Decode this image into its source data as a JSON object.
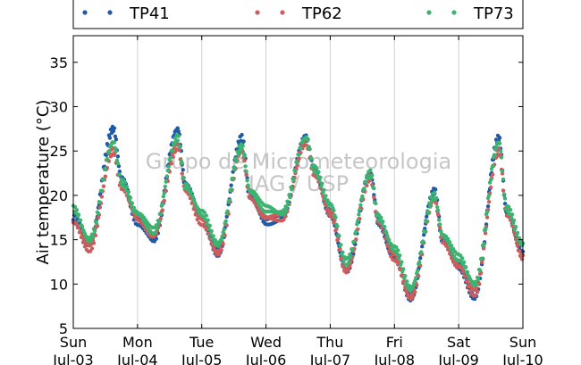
{
  "chart_data": {
    "type": "scatter",
    "ylabel": "Air temperature (°C)",
    "xlabel": "",
    "ylim": [
      5,
      38
    ],
    "xlim": [
      "2016-07-03T00:00",
      "2016-07-10T00:00"
    ],
    "yticks": [
      5,
      10,
      15,
      20,
      25,
      30,
      35
    ],
    "xticks": [
      {
        "day": "Sun",
        "date": "Jul-03"
      },
      {
        "day": "Mon",
        "date": "Jul-04"
      },
      {
        "day": "Tue",
        "date": "Jul-05"
      },
      {
        "day": "Wed",
        "date": "Jul-06"
      },
      {
        "day": "Thu",
        "date": "Jul-07"
      },
      {
        "day": "Fri",
        "date": "Jul-08"
      },
      {
        "day": "Sat",
        "date": "Jul-09"
      },
      {
        "day": "Sun",
        "date": "Jul-10"
      }
    ],
    "grid": "vertical",
    "legend_position": "top",
    "watermark": [
      "Grupo de Micrometeorologia",
      "IAG / USP"
    ],
    "series": [
      {
        "name": "TP41",
        "color": "#1f5aa6",
        "x": [
          "2016-07-03T00:00",
          "2016-07-03T06:00",
          "2016-07-03T15:00",
          "2016-07-03T18:00",
          "2016-07-04T00:00",
          "2016-07-04T06:00",
          "2016-07-04T15:00",
          "2016-07-04T18:00",
          "2016-07-05T00:00",
          "2016-07-05T06:00",
          "2016-07-05T15:00",
          "2016-07-05T18:00",
          "2016-07-06T00:00",
          "2016-07-06T06:00",
          "2016-07-06T15:00",
          "2016-07-06T18:00",
          "2016-07-07T00:00",
          "2016-07-07T06:00",
          "2016-07-07T15:00",
          "2016-07-07T18:00",
          "2016-07-08T00:00",
          "2016-07-08T06:00",
          "2016-07-08T15:00",
          "2016-07-08T18:00",
          "2016-07-09T00:00",
          "2016-07-09T06:00",
          "2016-07-09T15:00",
          "2016-07-09T18:00",
          "2016-07-10T00:00"
        ],
        "y": [
          17.5,
          14.5,
          27.5,
          22.0,
          17.0,
          15.0,
          27.5,
          21.0,
          17.5,
          13.5,
          26.5,
          20.0,
          17.0,
          17.5,
          26.5,
          23.0,
          18.0,
          11.5,
          22.5,
          17.0,
          13.0,
          8.5,
          20.5,
          15.0,
          12.0,
          8.5,
          26.5,
          18.0,
          14.0
        ]
      },
      {
        "name": "TP62",
        "color": "#cd5c5c",
        "x": [
          "2016-07-03T00:00",
          "2016-07-03T06:00",
          "2016-07-03T15:00",
          "2016-07-03T18:00",
          "2016-07-04T00:00",
          "2016-07-04T06:00",
          "2016-07-04T15:00",
          "2016-07-04T18:00",
          "2016-07-05T00:00",
          "2016-07-05T06:00",
          "2016-07-05T15:00",
          "2016-07-05T18:00",
          "2016-07-06T00:00",
          "2016-07-06T06:00",
          "2016-07-06T15:00",
          "2016-07-06T18:00",
          "2016-07-07T00:00",
          "2016-07-07T06:00",
          "2016-07-07T15:00",
          "2016-07-07T18:00",
          "2016-07-08T00:00",
          "2016-07-08T06:00",
          "2016-07-08T15:00",
          "2016-07-08T18:00",
          "2016-07-09T00:00",
          "2016-07-09T06:00",
          "2016-07-09T15:00",
          "2016-07-09T18:00",
          "2016-07-10T00:00"
        ],
        "y": [
          17.0,
          14.0,
          25.0,
          21.0,
          17.5,
          15.5,
          25.5,
          20.5,
          17.0,
          13.5,
          25.0,
          20.0,
          17.5,
          17.5,
          26.0,
          22.5,
          18.0,
          11.5,
          22.0,
          17.0,
          13.0,
          8.5,
          19.5,
          15.0,
          12.0,
          9.0,
          25.0,
          18.0,
          13.0
        ]
      },
      {
        "name": "TP73",
        "color": "#3cb371",
        "x": [
          "2016-07-03T00:00",
          "2016-07-03T06:00",
          "2016-07-03T15:00",
          "2016-07-03T18:00",
          "2016-07-04T00:00",
          "2016-07-04T06:00",
          "2016-07-04T15:00",
          "2016-07-04T18:00",
          "2016-07-05T00:00",
          "2016-07-05T06:00",
          "2016-07-05T15:00",
          "2016-07-05T18:00",
          "2016-07-06T00:00",
          "2016-07-06T06:00",
          "2016-07-06T15:00",
          "2016-07-06T18:00",
          "2016-07-07T00:00",
          "2016-07-07T06:00",
          "2016-07-07T15:00",
          "2016-07-07T18:00",
          "2016-07-08T00:00",
          "2016-07-08T06:00",
          "2016-07-08T15:00",
          "2016-07-08T18:00",
          "2016-07-09T00:00",
          "2016-07-09T06:00",
          "2016-07-09T15:00",
          "2016-07-09T18:00",
          "2016-07-10T00:00"
        ],
        "y": [
          18.5,
          15.0,
          26.0,
          21.5,
          18.0,
          16.0,
          26.5,
          21.0,
          18.0,
          14.5,
          25.5,
          20.5,
          18.5,
          18.0,
          26.5,
          23.0,
          19.0,
          12.5,
          22.5,
          17.5,
          14.0,
          9.5,
          20.0,
          15.5,
          13.0,
          10.0,
          26.0,
          18.5,
          14.5
        ]
      }
    ]
  }
}
